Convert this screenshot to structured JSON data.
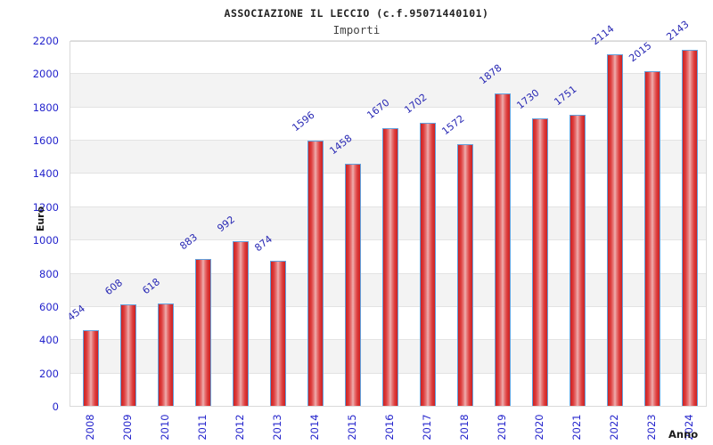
{
  "header": {
    "title": "ASSOCIAZIONE IL LECCIO (c.f.95071440101)",
    "subtitle": "Importi"
  },
  "chart_data": {
    "type": "bar",
    "title": "ASSOCIAZIONE IL LECCIO (c.f.95071440101)",
    "subtitle": "Importi",
    "xlabel": "Anno",
    "ylabel": "Euro",
    "categories": [
      "2008",
      "2009",
      "2010",
      "2011",
      "2012",
      "2013",
      "2014",
      "2015",
      "2016",
      "2017",
      "2018",
      "2019",
      "2020",
      "2021",
      "2022",
      "2023",
      "2024"
    ],
    "values": [
      454,
      608,
      618,
      883,
      992,
      874,
      1596,
      1458,
      1670,
      1702,
      1572,
      1878,
      1730,
      1751,
      2114,
      2015,
      2143
    ],
    "yticks": [
      0,
      200,
      400,
      600,
      800,
      1000,
      1200,
      1400,
      1600,
      1800,
      2000,
      2200
    ],
    "ylim": [
      0,
      2200
    ],
    "grid": "horizontal-alternating-bands",
    "legend": "none",
    "bar_labels": "rotated-above-bars",
    "colors": {
      "bar_fill_edge": "#cc2222",
      "bar_fill_center": "#efb0b0",
      "bar_border": "#62a1dd",
      "tick_text": "#2424cc",
      "value_label_text": "#2828b4",
      "band_gray": "#f3f3f3",
      "gridline": "#e3e3e3",
      "title_text": "#222222",
      "axis_label_text": "#1a1a1a"
    }
  }
}
